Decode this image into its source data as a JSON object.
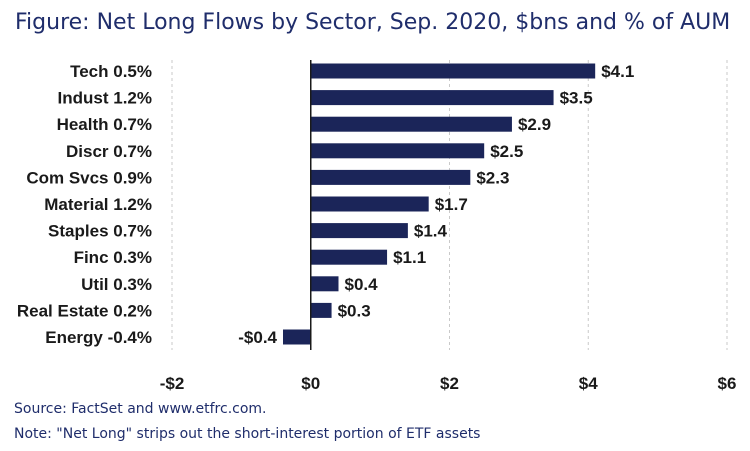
{
  "title": {
    "prefix": "Figure:",
    "text": "Net Long Flows by Sector, Sep. 2020, $bns and % of AUM"
  },
  "footer": {
    "source": "Source: FactSet and www.etfrc.com.",
    "note": "Note: \"Net Long\" strips out the short-interest portion of ETF assets"
  },
  "colors": {
    "bar": "#1b2559",
    "title": "#1f2d6b",
    "grid": "#c9c9c9"
  },
  "chart_data": {
    "type": "bar",
    "orientation": "horizontal",
    "categories": [
      "Tech 0.5%",
      "Indust 1.2%",
      "Health 0.7%",
      "Discr 0.7%",
      "Com Svcs 0.9%",
      "Material 1.2%",
      "Staples 0.7%",
      "Finc 0.3%",
      "Util 0.3%",
      "Real Estate 0.2%",
      "Energy -0.4%"
    ],
    "values": [
      4.1,
      3.5,
      2.9,
      2.5,
      2.3,
      1.7,
      1.4,
      1.1,
      0.4,
      0.3,
      -0.4
    ],
    "value_labels": [
      "$4.1",
      "$3.5",
      "$2.9",
      "$2.5",
      "$2.3",
      "$1.7",
      "$1.4",
      "$1.1",
      "$0.4",
      "$0.3",
      "-$0.4"
    ],
    "xlim": [
      -2,
      6
    ],
    "xticks": [
      -2,
      0,
      2,
      4,
      6
    ],
    "xtick_labels": [
      "-$2",
      "$0",
      "$2",
      "$4",
      "$6"
    ],
    "grid": "vertical dashed"
  }
}
